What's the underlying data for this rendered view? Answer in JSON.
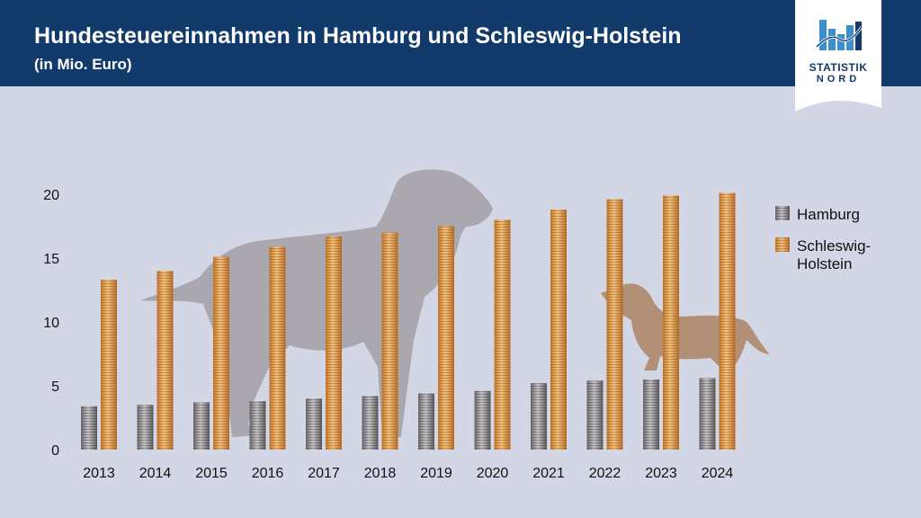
{
  "header": {
    "title": "Hundesteuereinnahmen in Hamburg und Schleswig-Holstein",
    "subtitle": "(in Mio. Euro)"
  },
  "logo": {
    "line1": "STATISTIK",
    "line2": "NORD"
  },
  "colors": {
    "header_bg": "#123a6a",
    "background": "#d3d6e4",
    "hamburg": "#8e8a8c",
    "schleswig_holstein": "#e0a050",
    "dog_silhouette": "#aaa7ae",
    "dachshund_silhouette": "#b29078"
  },
  "decor": [
    "dog-silhouette",
    "dachshund-silhouette"
  ],
  "chart_data": {
    "type": "bar",
    "title": "Hundesteuereinnahmen in Hamburg und Schleswig-Holstein",
    "subtitle": "(in Mio. Euro)",
    "categories": [
      "2013",
      "2014",
      "2015",
      "2016",
      "2017",
      "2018",
      "2019",
      "2020",
      "2021",
      "2022",
      "2023",
      "2024"
    ],
    "series": [
      {
        "name": "Hamburg",
        "values": [
          3.4,
          3.5,
          3.7,
          3.8,
          4.0,
          4.2,
          4.4,
          4.6,
          5.2,
          5.4,
          5.5,
          5.6
        ]
      },
      {
        "name": "Schleswig-Holstein",
        "values": [
          13.3,
          14.0,
          15.1,
          15.9,
          16.7,
          17.0,
          17.5,
          18.0,
          18.8,
          19.6,
          19.9,
          20.1
        ]
      }
    ],
    "legend": [
      {
        "lines": [
          "Hamburg"
        ]
      },
      {
        "lines": [
          "Schleswig-",
          "Holstein"
        ]
      }
    ],
    "ylim": [
      0,
      21
    ],
    "yticks": [
      0,
      5,
      10,
      15,
      20
    ],
    "xlabel": "",
    "ylabel": "",
    "grid": false,
    "legend_position": "right"
  }
}
